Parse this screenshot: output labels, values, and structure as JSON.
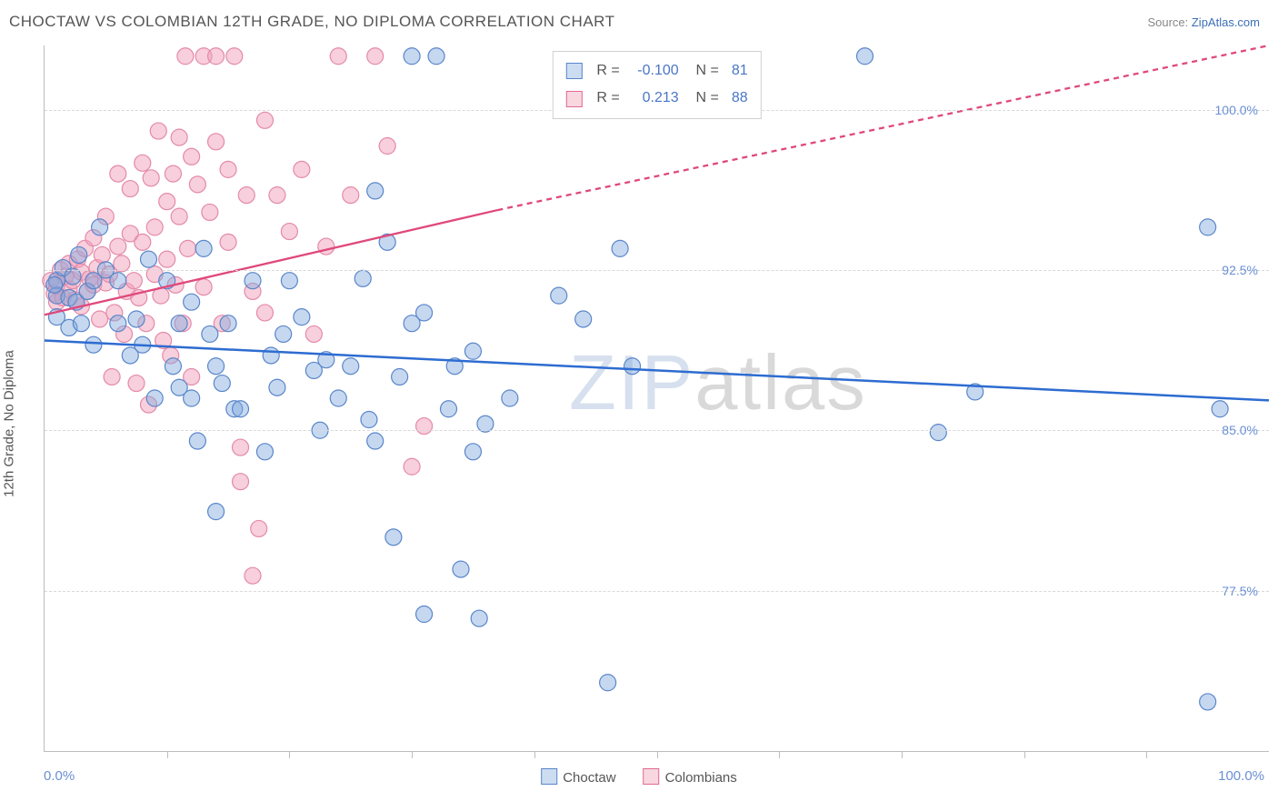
{
  "header": {
    "title": "CHOCTAW VS COLOMBIAN 12TH GRADE, NO DIPLOMA CORRELATION CHART",
    "source_prefix": "Source: ",
    "source_link": "ZipAtlas.com"
  },
  "chart": {
    "type": "scatter",
    "ylabel": "12th Grade, No Diploma",
    "xlim": [
      0,
      100
    ],
    "ylim": [
      70,
      103
    ],
    "y_ticks": [
      77.5,
      85.0,
      92.5,
      100.0
    ],
    "y_tick_labels": [
      "77.5%",
      "85.0%",
      "92.5%",
      "100.0%"
    ],
    "x_ticks": [
      10,
      20,
      30,
      40,
      50,
      60,
      70,
      80,
      90
    ],
    "x_tick_labels_ends": [
      "0.0%",
      "100.0%"
    ],
    "grid_color": "#d9d9d9",
    "background_color": "#ffffff",
    "marker_radius": 9,
    "colors": {
      "blue": "#5a86c9",
      "pink": "#e48aa9",
      "trend_blue": "#2d6cd1",
      "trend_pink": "#e0487a"
    },
    "watermark": {
      "part1": "ZIP",
      "part2": "atlas"
    },
    "legend_bottom": [
      {
        "color": "blue",
        "label": "Choctaw"
      },
      {
        "color": "pink",
        "label": "Colombians"
      }
    ],
    "stats": [
      {
        "color": "blue",
        "r": "-0.100",
        "n": "81"
      },
      {
        "color": "pink",
        "r": "0.213",
        "n": "88"
      }
    ],
    "trend_lines": {
      "blue": {
        "x1": 0,
        "y1": 89.2,
        "x2": 100,
        "y2": 86.4
      },
      "pink": {
        "x1": 0,
        "y1": 90.4,
        "x_solid_end": 37,
        "y_solid_end": 95.3,
        "x2": 100,
        "y2": 103.0
      }
    },
    "series": {
      "choctaw": [
        [
          1,
          92
        ],
        [
          1,
          91.3
        ],
        [
          1.5,
          92.6
        ],
        [
          2,
          91.2
        ],
        [
          2,
          89.8
        ],
        [
          2.3,
          92.2
        ],
        [
          2.6,
          91
        ],
        [
          1,
          90.3
        ],
        [
          0.8,
          91.8
        ],
        [
          2.8,
          93.2
        ],
        [
          3.5,
          91.5
        ],
        [
          4,
          92
        ],
        [
          4.5,
          94.5
        ],
        [
          3,
          90
        ],
        [
          4,
          89
        ],
        [
          5,
          92.5
        ],
        [
          6,
          92
        ],
        [
          6,
          90
        ],
        [
          7,
          88.5
        ],
        [
          7.5,
          90.2
        ],
        [
          8,
          89
        ],
        [
          8.5,
          93
        ],
        [
          9,
          86.5
        ],
        [
          10,
          92
        ],
        [
          10.5,
          88
        ],
        [
          11,
          87
        ],
        [
          11,
          90
        ],
        [
          12,
          86.5
        ],
        [
          12,
          91
        ],
        [
          12.5,
          84.5
        ],
        [
          13,
          93.5
        ],
        [
          13.5,
          89.5
        ],
        [
          14,
          88
        ],
        [
          14,
          81.2
        ],
        [
          14.5,
          87.2
        ],
        [
          15,
          90
        ],
        [
          15.5,
          86
        ],
        [
          16,
          86
        ],
        [
          17,
          92
        ],
        [
          18,
          84
        ],
        [
          18.5,
          88.5
        ],
        [
          19,
          87
        ],
        [
          19.5,
          89.5
        ],
        [
          20,
          92
        ],
        [
          21,
          90.3
        ],
        [
          22,
          87.8
        ],
        [
          22.5,
          85
        ],
        [
          23,
          88.3
        ],
        [
          24,
          86.5
        ],
        [
          25,
          88
        ],
        [
          26,
          92.1
        ],
        [
          26.5,
          85.5
        ],
        [
          27,
          84.5
        ],
        [
          28,
          93.8
        ],
        [
          28.5,
          80
        ],
        [
          29,
          87.5
        ],
        [
          30,
          90
        ],
        [
          30,
          102.5
        ],
        [
          32,
          102.5
        ],
        [
          31,
          76.4
        ],
        [
          33.5,
          88
        ],
        [
          35,
          88.7
        ],
        [
          31,
          90.5
        ],
        [
          27,
          96.2
        ],
        [
          33,
          86
        ],
        [
          34,
          78.5
        ],
        [
          35.5,
          76.2
        ],
        [
          38,
          86.5
        ],
        [
          35,
          84
        ],
        [
          42,
          91.3
        ],
        [
          44,
          90.2
        ],
        [
          46,
          73.2
        ],
        [
          47,
          93.5
        ],
        [
          48,
          88
        ],
        [
          73,
          84.9
        ],
        [
          76,
          86.8
        ],
        [
          67,
          102.5
        ],
        [
          95,
          72.3
        ],
        [
          95,
          94.5
        ],
        [
          96,
          86
        ],
        [
          36,
          85.3
        ]
      ],
      "colombians": [
        [
          0.5,
          92
        ],
        [
          0.8,
          91.4
        ],
        [
          1,
          91.8
        ],
        [
          1,
          91
        ],
        [
          1.3,
          92.5
        ],
        [
          1.5,
          91.2
        ],
        [
          1.7,
          92.2
        ],
        [
          2,
          92.8
        ],
        [
          2,
          91.6
        ],
        [
          2.3,
          92
        ],
        [
          2.5,
          91.1
        ],
        [
          2.7,
          93
        ],
        [
          3,
          92.4
        ],
        [
          3,
          90.8
        ],
        [
          3.3,
          93.5
        ],
        [
          3.5,
          91.5
        ],
        [
          3.7,
          92.1
        ],
        [
          4,
          91.8
        ],
        [
          4,
          94
        ],
        [
          4.3,
          92.6
        ],
        [
          4.5,
          90.2
        ],
        [
          4.7,
          93.2
        ],
        [
          5,
          91.9
        ],
        [
          5,
          95
        ],
        [
          5.3,
          92.3
        ],
        [
          5.5,
          87.5
        ],
        [
          5.7,
          90.5
        ],
        [
          6,
          93.6
        ],
        [
          6,
          97
        ],
        [
          6.3,
          92.8
        ],
        [
          6.5,
          89.5
        ],
        [
          6.7,
          91.5
        ],
        [
          7,
          94.2
        ],
        [
          7,
          96.3
        ],
        [
          7.3,
          92
        ],
        [
          7.5,
          87.2
        ],
        [
          7.7,
          91.2
        ],
        [
          8,
          93.8
        ],
        [
          8,
          97.5
        ],
        [
          8.3,
          90
        ],
        [
          8.5,
          86.2
        ],
        [
          8.7,
          96.8
        ],
        [
          9,
          94.5
        ],
        [
          9,
          92.3
        ],
        [
          9.3,
          99
        ],
        [
          9.5,
          91.3
        ],
        [
          9.7,
          89.2
        ],
        [
          10,
          95.7
        ],
        [
          10,
          93
        ],
        [
          10.3,
          88.5
        ],
        [
          10.5,
          97
        ],
        [
          10.7,
          91.8
        ],
        [
          11,
          98.7
        ],
        [
          11,
          95
        ],
        [
          11.3,
          90
        ],
        [
          11.5,
          102.5
        ],
        [
          11.7,
          93.5
        ],
        [
          12,
          97.8
        ],
        [
          12,
          87.5
        ],
        [
          12.5,
          96.5
        ],
        [
          13,
          91.7
        ],
        [
          13,
          102.5
        ],
        [
          13.5,
          95.2
        ],
        [
          14,
          98.5
        ],
        [
          14,
          102.5
        ],
        [
          14.5,
          90
        ],
        [
          15,
          97.2
        ],
        [
          15,
          93.8
        ],
        [
          15.5,
          102.5
        ],
        [
          16,
          84.2
        ],
        [
          16,
          82.6
        ],
        [
          16.5,
          96
        ],
        [
          17,
          91.5
        ],
        [
          17,
          78.2
        ],
        [
          17.5,
          80.4
        ],
        [
          18,
          99.5
        ],
        [
          18,
          90.5
        ],
        [
          19,
          96
        ],
        [
          20,
          94.3
        ],
        [
          21,
          97.2
        ],
        [
          22,
          89.5
        ],
        [
          23,
          93.6
        ],
        [
          24,
          102.5
        ],
        [
          25,
          96
        ],
        [
          27,
          102.5
        ],
        [
          28,
          98.3
        ],
        [
          30,
          83.3
        ],
        [
          31,
          85.2
        ]
      ]
    }
  }
}
